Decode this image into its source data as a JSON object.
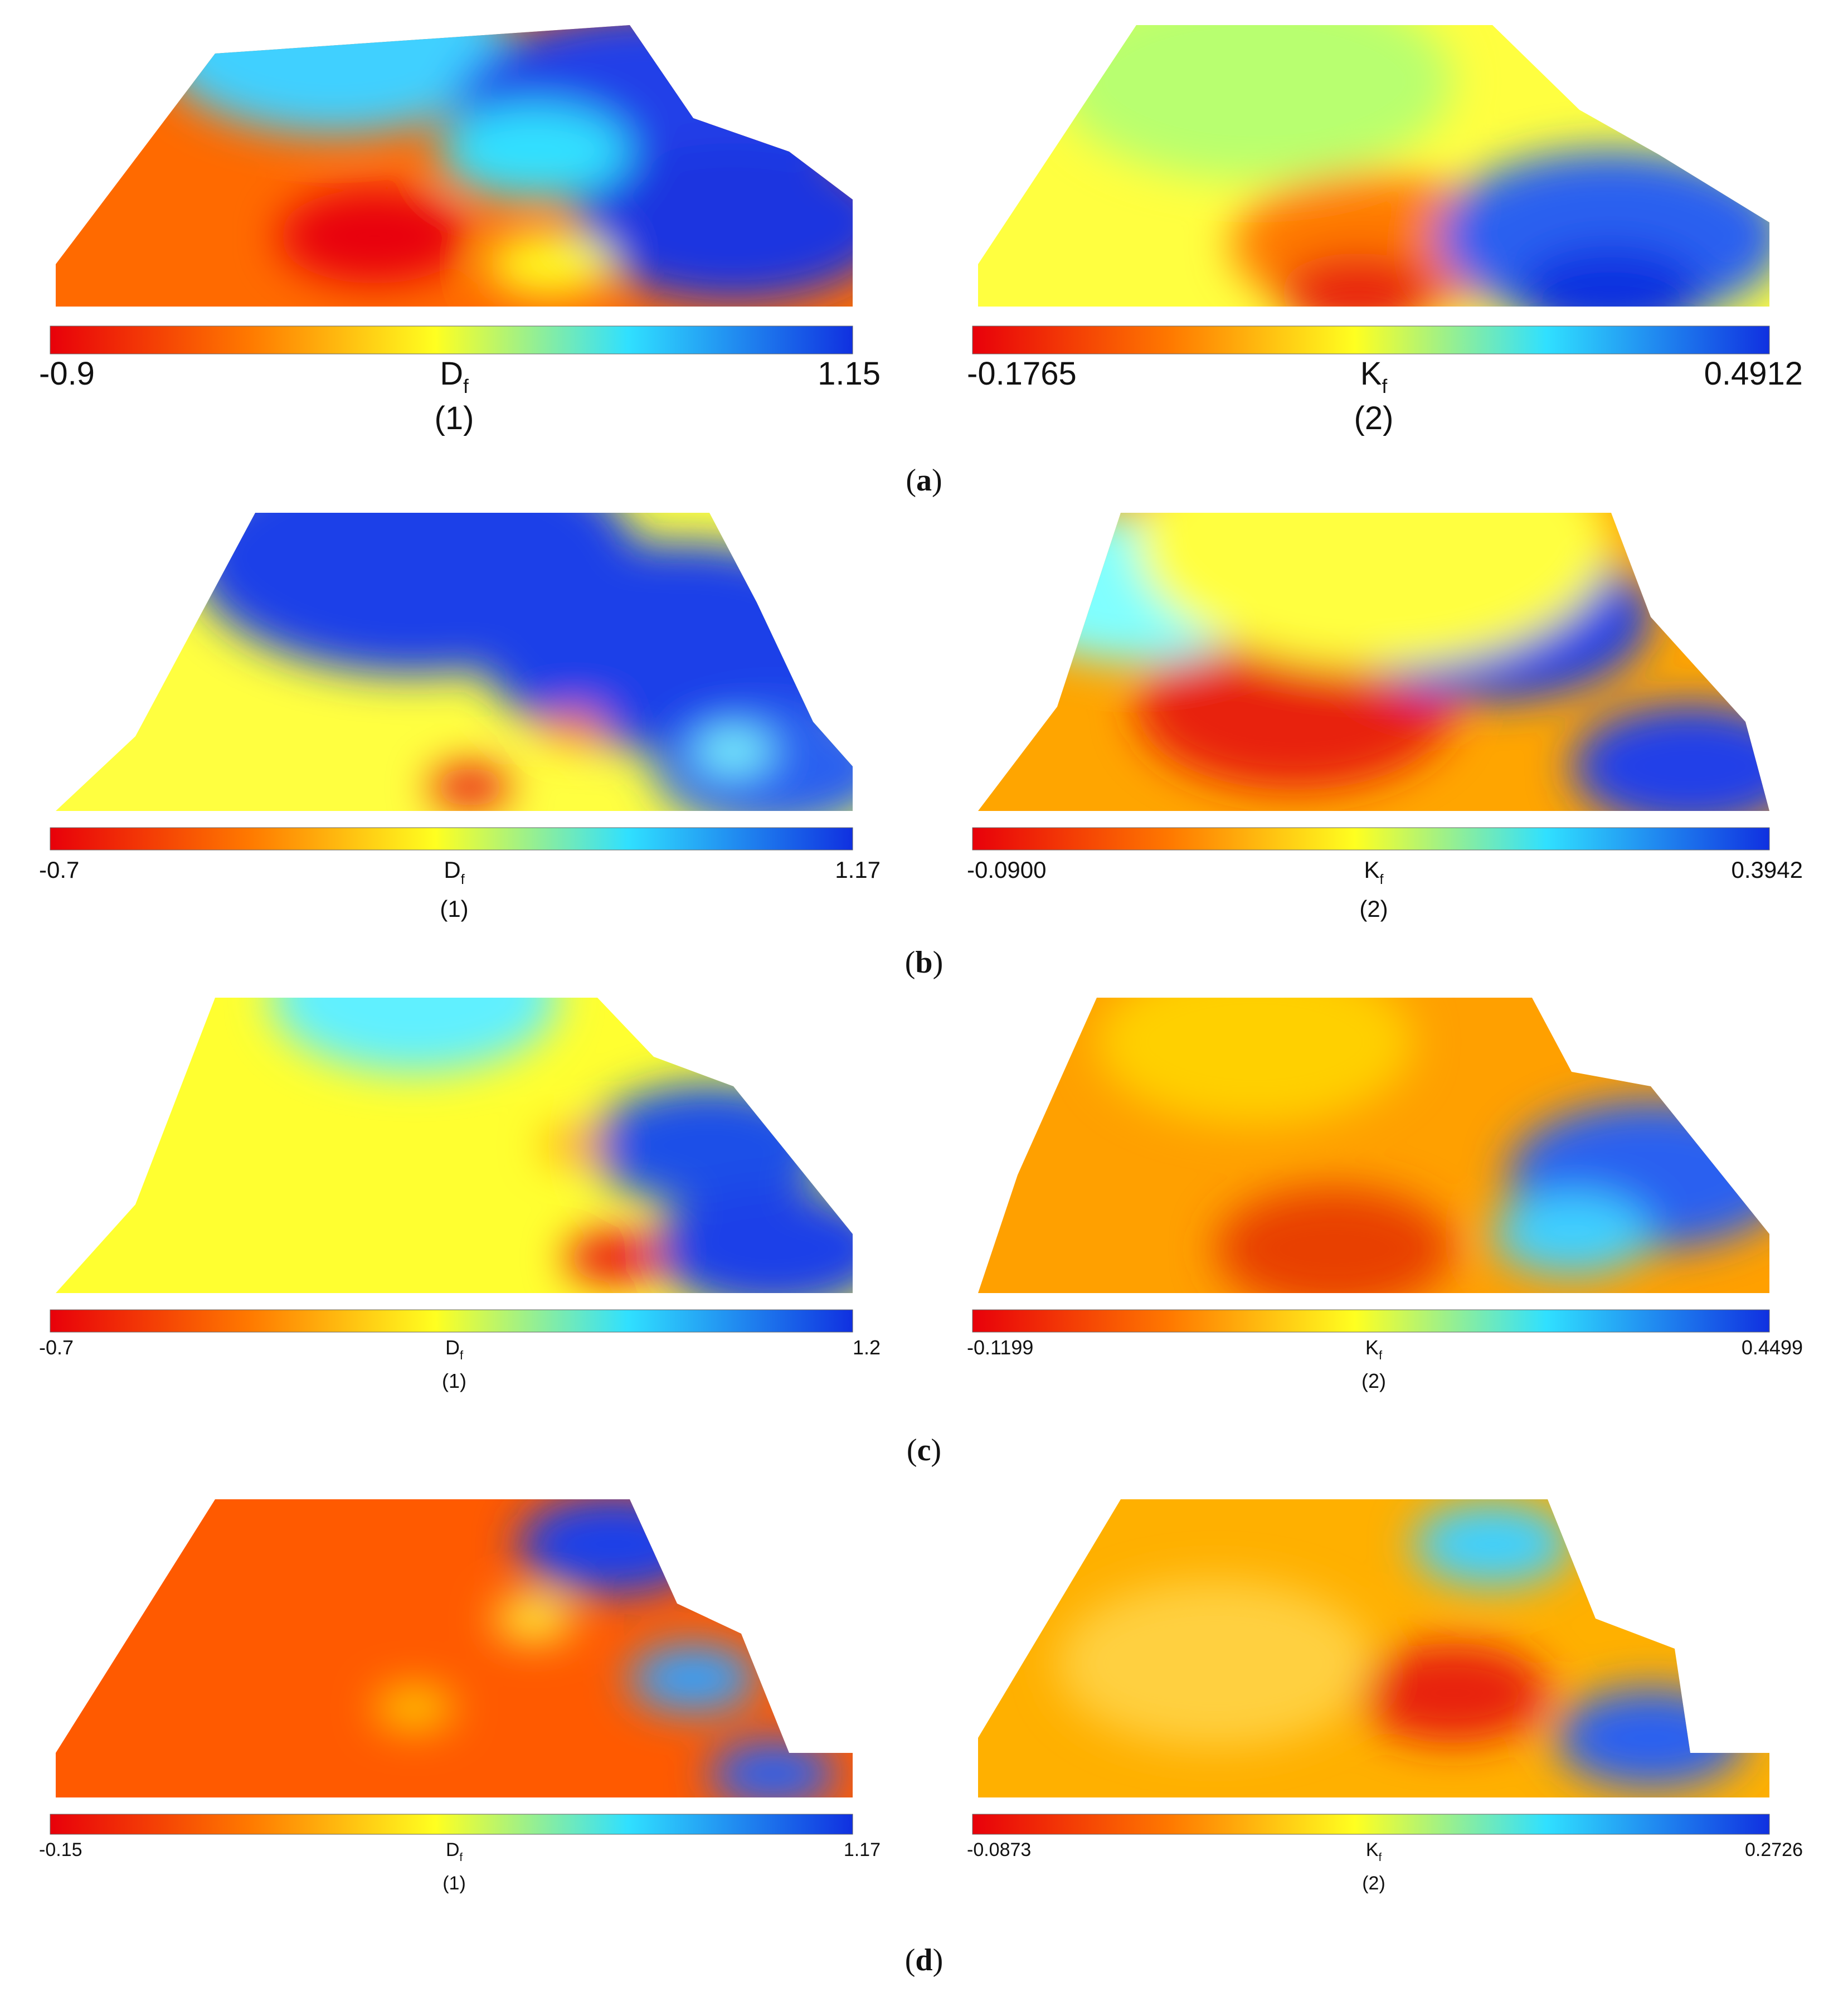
{
  "chart_data": [
    {
      "type": "heatmap",
      "row": "a",
      "colormap": [
        "#e8000a",
        "#ff7a00",
        "#ffff20",
        "#30e0ff",
        "#1030e0"
      ],
      "panels": [
        {
          "variable": "D",
          "subscript": "f",
          "panel_label": "(1)",
          "min_label": "-0.9",
          "max_label": "1.15",
          "min": -0.9,
          "max": 1.15
        },
        {
          "variable": "K",
          "subscript": "f",
          "panel_label": "(2)",
          "min_label": "-0.1765",
          "max_label": "0.4912",
          "min": -0.1765,
          "max": 0.4912
        }
      ],
      "row_label": "a"
    },
    {
      "type": "heatmap",
      "row": "b",
      "colormap": [
        "#e8000a",
        "#ff7a00",
        "#ffff20",
        "#30e0ff",
        "#1030e0"
      ],
      "panels": [
        {
          "variable": "D",
          "subscript": "f",
          "panel_label": "(1)",
          "min_label": "-0.7",
          "max_label": "1.17",
          "min": -0.7,
          "max": 1.17
        },
        {
          "variable": "K",
          "subscript": "f",
          "panel_label": "(2)",
          "min_label": "-0.0900",
          "max_label": "0.3942",
          "min": -0.09,
          "max": 0.3942
        }
      ],
      "row_label": "b"
    },
    {
      "type": "heatmap",
      "row": "c",
      "colormap": [
        "#e8000a",
        "#ff7a00",
        "#ffff20",
        "#30e0ff",
        "#1030e0"
      ],
      "panels": [
        {
          "variable": "D",
          "subscript": "f",
          "panel_label": "(1)",
          "min_label": "-0.7",
          "max_label": "1.2",
          "min": -0.7,
          "max": 1.2
        },
        {
          "variable": "K",
          "subscript": "f",
          "panel_label": "(2)",
          "min_label": "-0.1199",
          "max_label": "0.4499",
          "min": -0.1199,
          "max": 0.4499
        }
      ],
      "row_label": "c"
    },
    {
      "type": "heatmap",
      "row": "d",
      "colormap": [
        "#e8000a",
        "#ff7a00",
        "#ffff20",
        "#30e0ff",
        "#1030e0"
      ],
      "panels": [
        {
          "variable": "D",
          "subscript": "f",
          "panel_label": "(1)",
          "min_label": "-0.15",
          "max_label": "1.17",
          "min": -0.15,
          "max": 1.17
        },
        {
          "variable": "K",
          "subscript": "f",
          "panel_label": "(2)",
          "min_label": "-0.0873",
          "max_label": "0.2726",
          "min": -0.0873,
          "max": 0.2726
        }
      ],
      "row_label": "d"
    }
  ]
}
